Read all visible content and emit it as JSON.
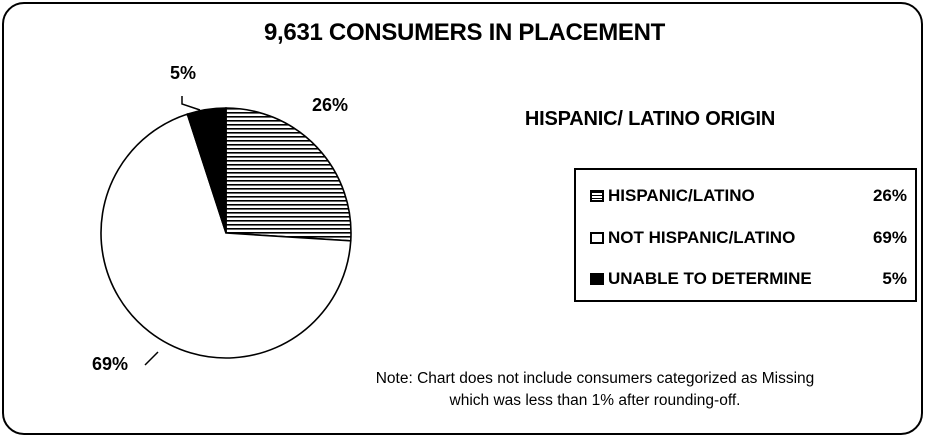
{
  "chart_data": {
    "type": "pie",
    "title": "9,631 CONSUMERS IN PLACEMENT",
    "subtitle": "HISPANIC/ LATINO ORIGIN",
    "slices": [
      {
        "label": "HISPANIC/LATINO",
        "value": 26,
        "display": "26%",
        "fill": "hatch"
      },
      {
        "label": "NOT HISPANIC/LATINO",
        "value": 69,
        "display": "69%",
        "fill": "#ffffff"
      },
      {
        "label": "UNABLE TO DETERMINE",
        "value": 5,
        "display": "5%",
        "fill": "#000000"
      }
    ],
    "legend_position": "right",
    "note_lines": [
      "Note: Chart does not include consumers categorized as Missing",
      "which was less than 1% after rounding-off."
    ]
  }
}
